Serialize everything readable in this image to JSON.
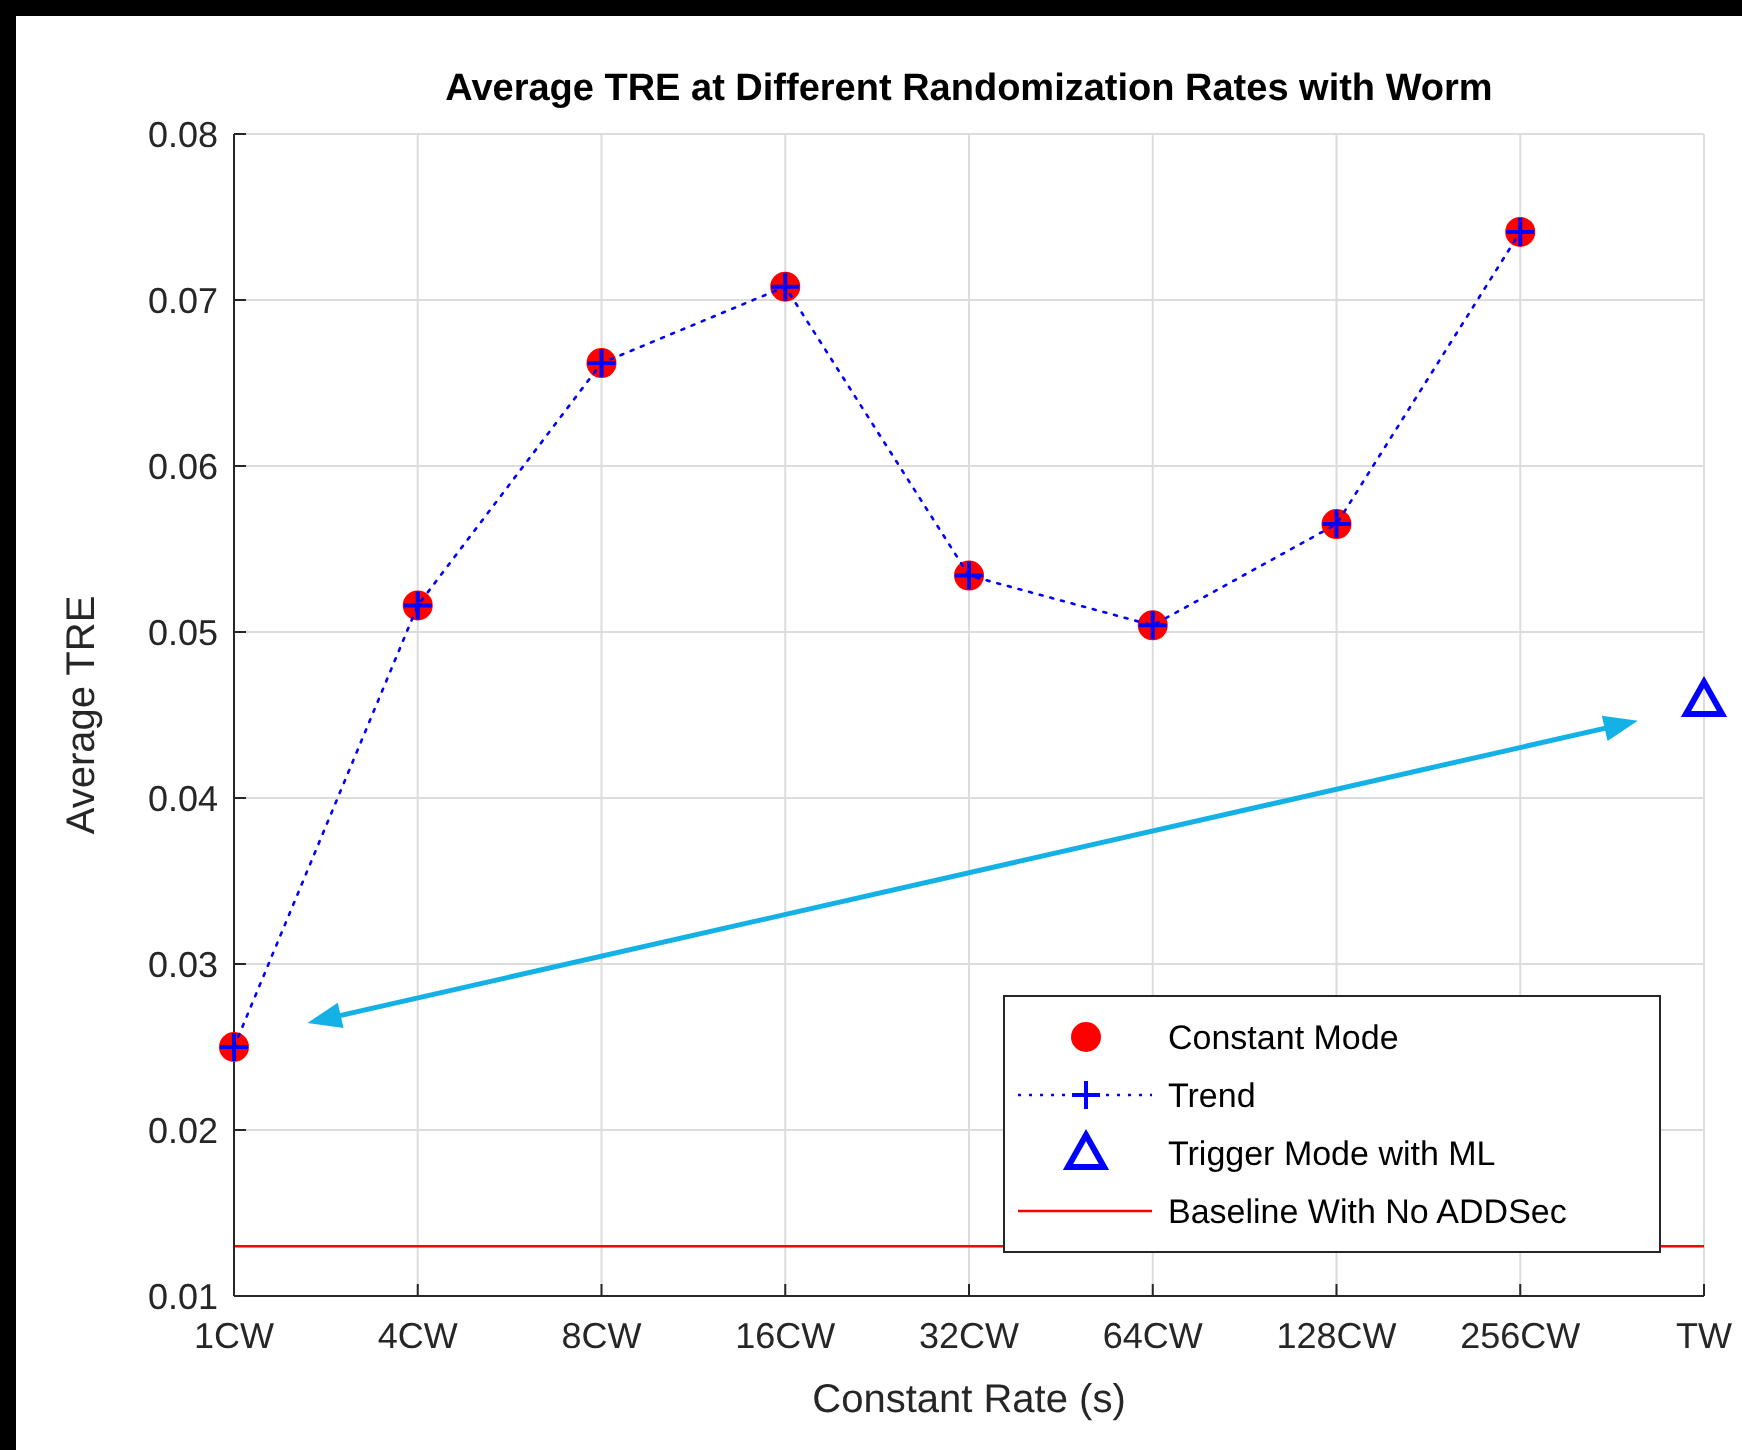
{
  "chart_data": {
    "type": "scatter",
    "title": "Average TRE at Different Randomization Rates with Worm",
    "xlabel": "Constant Rate (s)",
    "ylabel": "Average TRE",
    "categories": [
      "1CW",
      "4CW",
      "8CW",
      "16CW",
      "32CW",
      "64CW",
      "128CW",
      "256CW",
      "TW"
    ],
    "series": [
      {
        "name": "Constant Mode",
        "color": "#ff0000",
        "marker": "circle",
        "values": [
          0.025,
          0.0516,
          0.0662,
          0.0708,
          0.0534,
          0.0504,
          0.0565,
          0.0741,
          null
        ]
      },
      {
        "name": "Trend",
        "type": "line",
        "color": "#0000ff",
        "marker": "cross",
        "line_style": "dotted",
        "values": [
          0.025,
          0.0516,
          0.0662,
          0.0708,
          0.0534,
          0.0504,
          0.0565,
          0.0741,
          null
        ]
      },
      {
        "name": "Trigger Mode with ML",
        "color": "#0000ff",
        "marker": "triangle",
        "values": [
          null,
          null,
          null,
          null,
          null,
          null,
          null,
          null,
          0.0459
        ]
      }
    ],
    "ref_lines": [
      {
        "axis": "y",
        "value": 0.013,
        "label": "Baseline With No ADDSec",
        "color": "#ff0000",
        "line_style": "solid"
      }
    ],
    "ylim": [
      0.01,
      0.08
    ],
    "yticks": [
      0.01,
      0.02,
      0.03,
      0.04,
      0.05,
      0.06,
      0.07,
      0.08
    ],
    "grid": true,
    "legend": "bottom right"
  }
}
